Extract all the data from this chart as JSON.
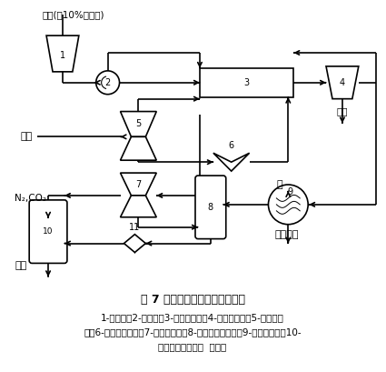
{
  "title": "图 7 超临界水氧化处理污水流程",
  "caption_line1": "1-污水槽；2-污水泵；3-氧化反应器；4-固体分离器；5-空气压缩",
  "caption_line2": "机；6-循环用喷射泵；7-膨胀机透平；8-高压气液分离器；9-蒸汽发生器；10-",
  "caption_line3": "低压气液分离器；  减压器",
  "bg_color": "#ffffff",
  "line_color": "#000000",
  "font_size": 8,
  "title_font_size": 9
}
